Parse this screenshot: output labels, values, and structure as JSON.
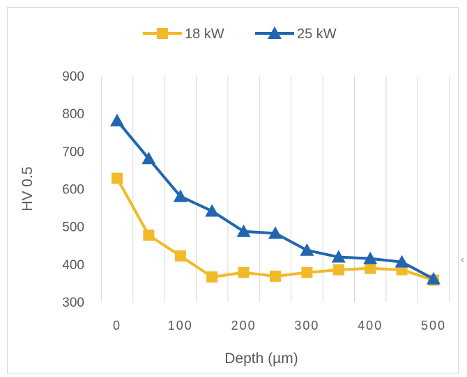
{
  "chart_data": {
    "type": "line",
    "xlabel": "Depth (µm)",
    "ylabel": "HV 0.5",
    "xlim": [
      0,
      500
    ],
    "ylim": [
      300,
      900
    ],
    "x_ticks": [
      0,
      100,
      200,
      300,
      400,
      500
    ],
    "y_ticks": [
      300,
      400,
      500,
      600,
      700,
      800,
      900
    ],
    "x": [
      0,
      50,
      100,
      150,
      200,
      250,
      300,
      350,
      400,
      450,
      500
    ],
    "grid": "vertical",
    "legend_position": "top",
    "series": [
      {
        "name": "18 kW",
        "marker": "square",
        "color": "#f2b929",
        "values": [
          628,
          477,
          422,
          366,
          378,
          368,
          378,
          385,
          389,
          385,
          358
        ]
      },
      {
        "name": "25 kW",
        "marker": "triangle",
        "color": "#2166b0",
        "values": [
          781,
          680,
          580,
          541,
          487,
          482,
          437,
          419,
          415,
          406,
          361
        ]
      }
    ]
  },
  "side_mark": "c"
}
